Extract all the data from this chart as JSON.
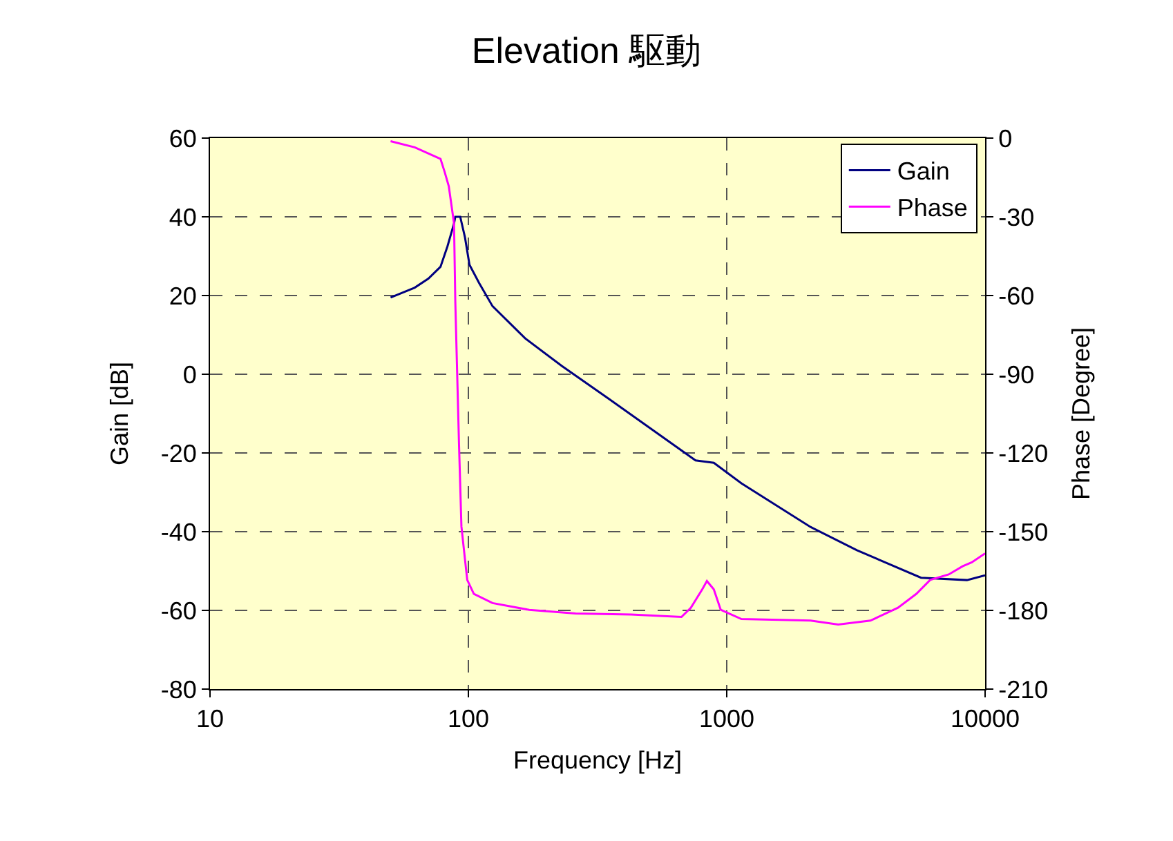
{
  "chart_data": {
    "type": "line",
    "title": "Elevation 駆動",
    "xlabel": "Frequency [Hz]",
    "ylabel": "Gain [dB]",
    "y2label": "Phase [Degree]",
    "log": "x",
    "grid": true,
    "legend": "top right",
    "marker": "none",
    "line_style": "solid",
    "xlim": [
      10,
      10000
    ],
    "xticks": [
      10,
      100,
      1000,
      10000
    ],
    "ylim": [
      -80,
      60
    ],
    "yticks": [
      -80,
      -60,
      -40,
      -20,
      0,
      20,
      40,
      60
    ],
    "y2lim": [
      -210,
      0
    ],
    "y2ticks": [
      -210,
      -180,
      -150,
      -120,
      -90,
      -60,
      -30,
      0
    ],
    "series": [
      {
        "name": "Gain",
        "color": "#000080",
        "x": [
          50,
          62,
          70,
          78,
          83,
          88,
          89,
          93,
          97,
          101,
          110,
          124,
          166,
          230,
          347,
          757,
          891,
          1140,
          2110,
          3190,
          5650,
          8510,
          10000
        ],
        "values": [
          19.5,
          22,
          24.3,
          27.3,
          32.5,
          38.3,
          40,
          40,
          34.8,
          27.8,
          23.2,
          17.3,
          9.1,
          2.1,
          -6.1,
          -21.9,
          -22.5,
          -27.7,
          -38.8,
          -44.7,
          -51.7,
          -52.3,
          -51.1
        ]
      },
      {
        "name": "Phase",
        "color": "#ff00ff",
        "axis": "y2",
        "x": [
          50,
          62,
          78,
          81,
          84,
          88,
          89,
          92,
          94,
          97,
          99,
          105,
          124,
          172,
          260,
          427,
          668,
          726,
          804,
          838,
          891,
          948,
          1140,
          2110,
          2700,
          3600,
          4600,
          5420,
          6130,
          7230,
          8180,
          8880,
          10000
        ],
        "values": [
          -1.2,
          -3.5,
          -7.9,
          -13,
          -18.4,
          -32.5,
          -62.3,
          -116.7,
          -148,
          -160.5,
          -168.4,
          -173.7,
          -177.2,
          -179.8,
          -181.2,
          -181.6,
          -182.5,
          -179,
          -172,
          -168.8,
          -172,
          -179.8,
          -183.3,
          -183.9,
          -185.4,
          -183.9,
          -179,
          -173.7,
          -168.4,
          -166.3,
          -163.2,
          -161.7,
          -158.3
        ]
      }
    ]
  }
}
